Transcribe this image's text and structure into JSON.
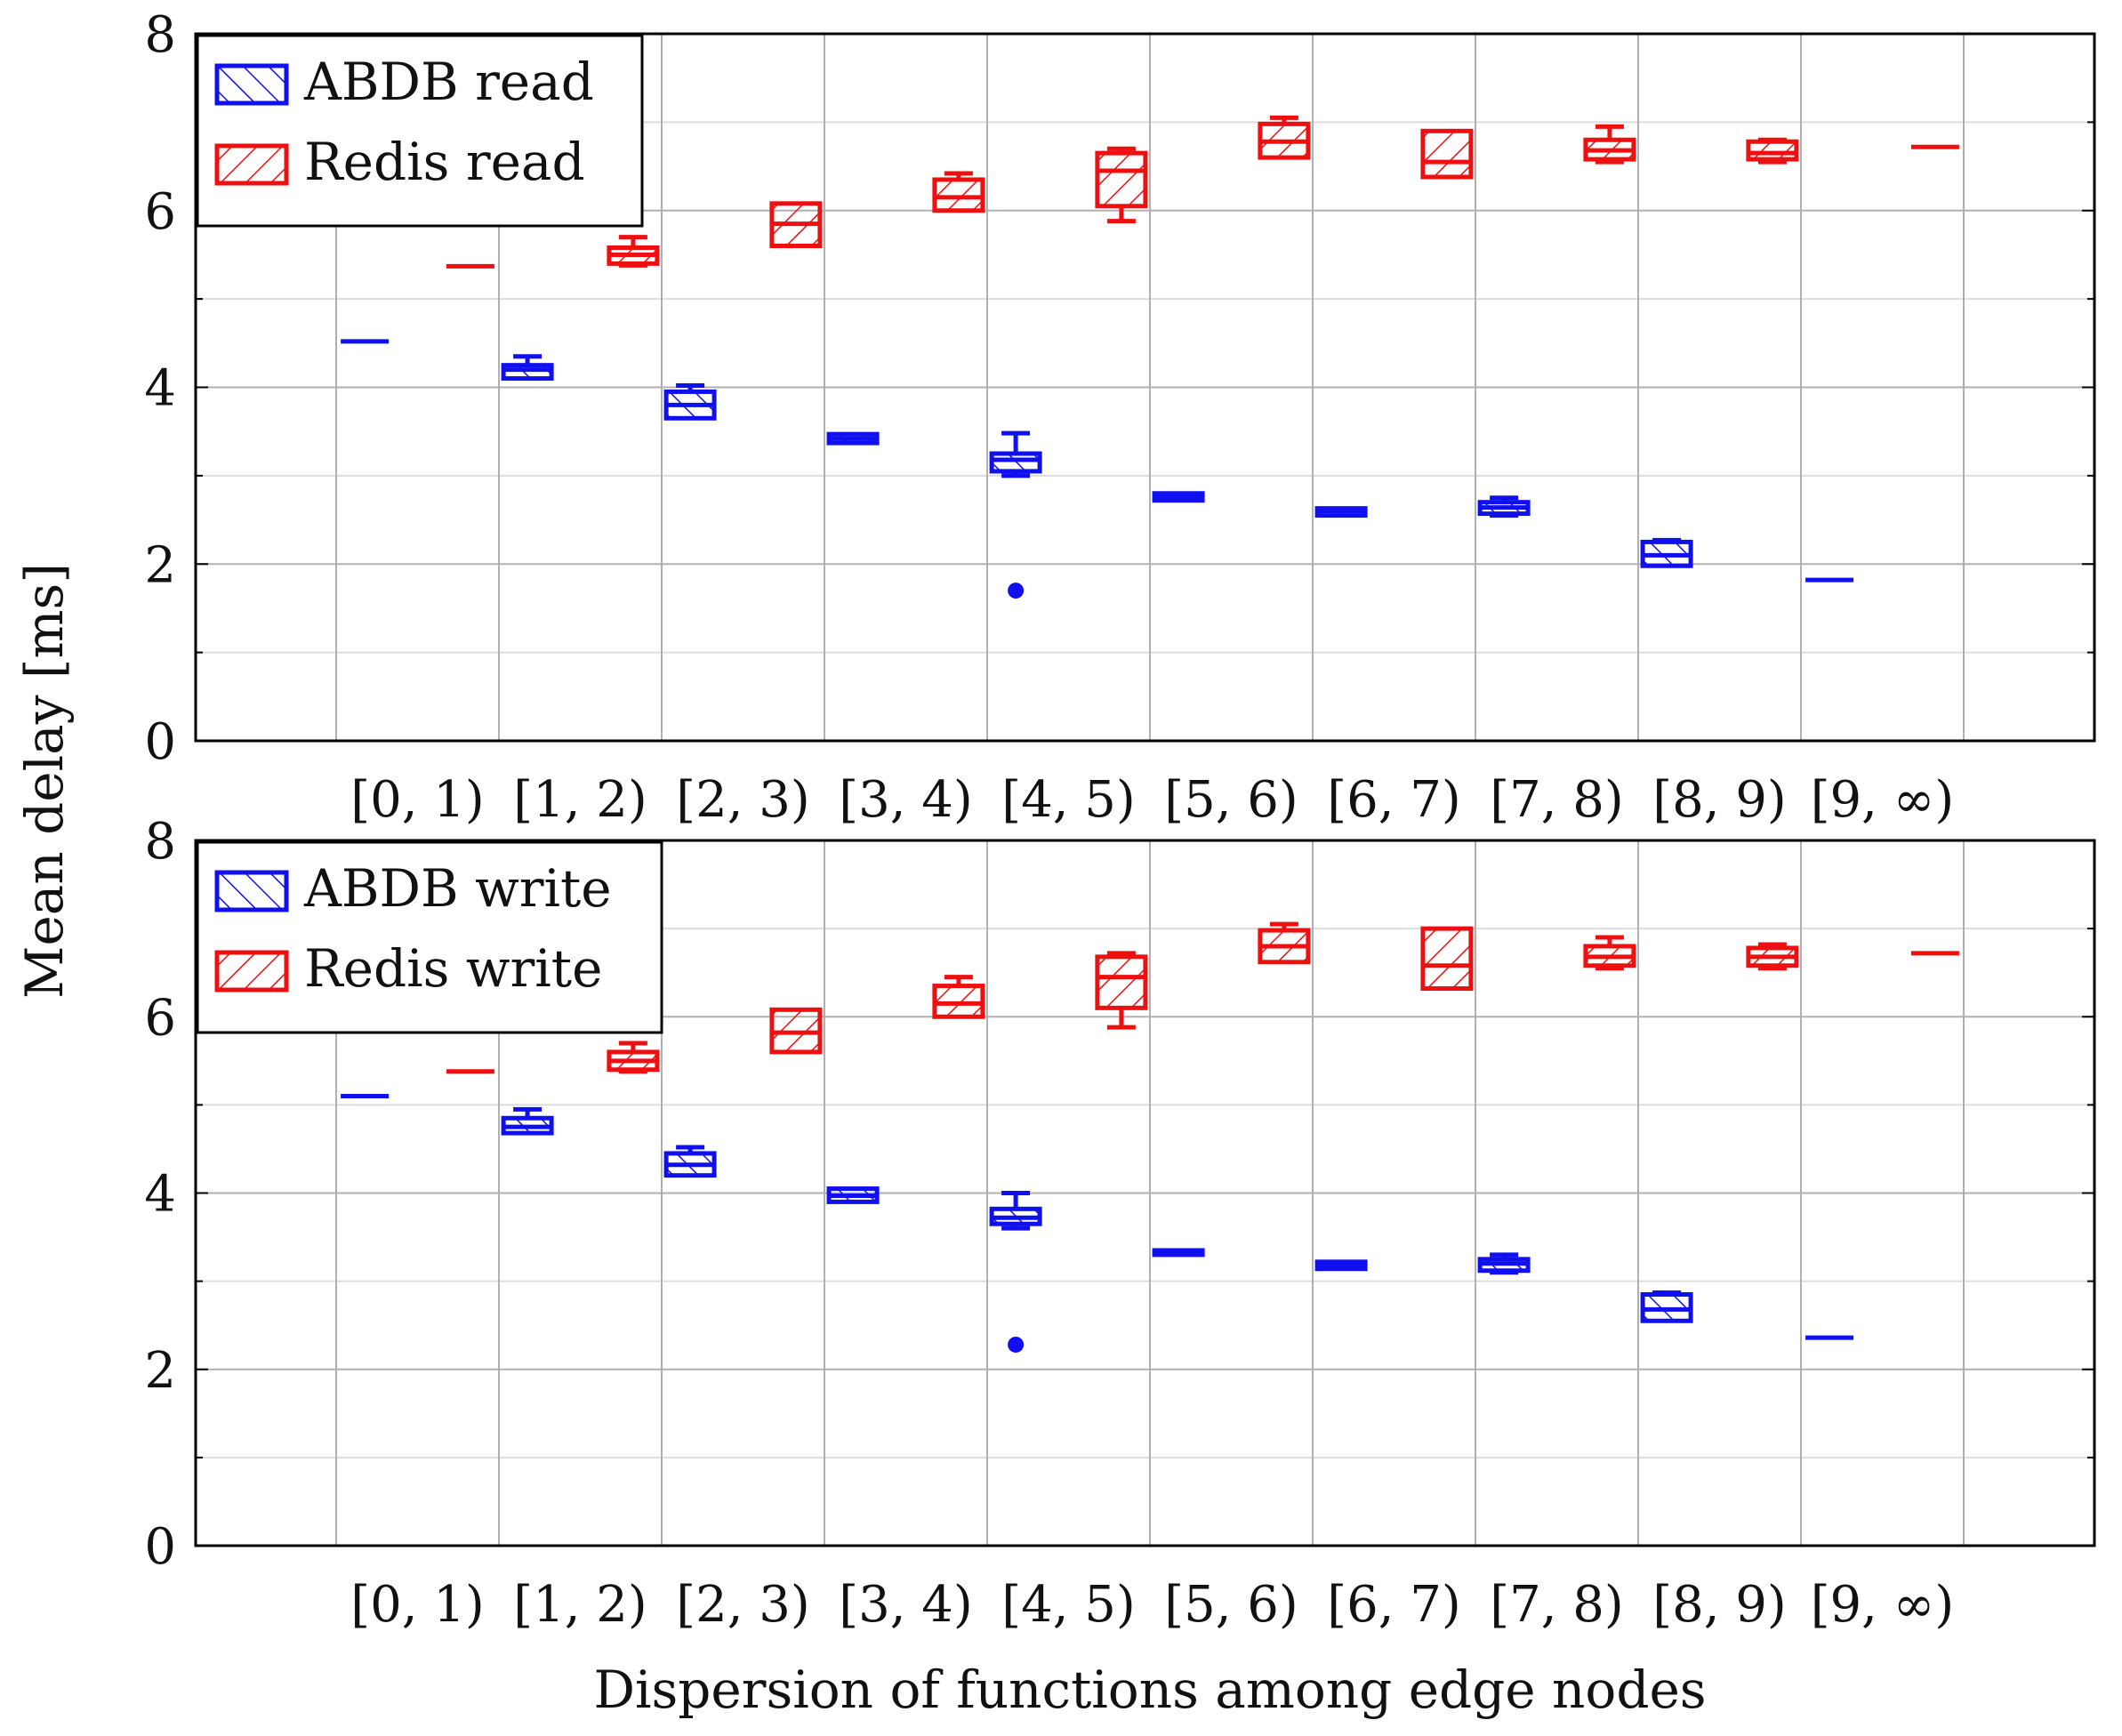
{
  "figure": {
    "ylabel": "Mean delay [ms]",
    "xlabel": "Dispersion of functions among edge nodes"
  },
  "colors": {
    "abdb": "#1010ee",
    "redis": "#ee1010",
    "grid_major": "#b0b0b0",
    "grid_minor": "#dcdcdc",
    "axis": "#000000"
  },
  "chart_data": [
    {
      "type": "box",
      "title": "",
      "xlabel": "",
      "ylabel": "Mean delay [ms]",
      "ylim": [
        0,
        8
      ],
      "yticks": [
        0,
        2,
        4,
        6,
        8
      ],
      "grid": true,
      "legend_position": "top-left",
      "categories": [
        "[0, 1)",
        "[1, 2)",
        "[2, 3)",
        "[3, 4)",
        "[4, 5)",
        "[5, 6)",
        "[6, 7)",
        "[7, 8)",
        "[8, 9)",
        "[9, ∞)"
      ],
      "series": [
        {
          "name": "ABDB read",
          "color": "#1010ee",
          "hatch": "north-east",
          "boxes": [
            {
              "min": 4.52,
              "q1": 4.52,
              "median": 4.52,
              "q3": 4.52,
              "max": 4.52
            },
            {
              "min": 4.1,
              "q1": 4.1,
              "median": 4.2,
              "q3": 4.25,
              "max": 4.35
            },
            {
              "min": 3.65,
              "q1": 3.65,
              "median": 3.8,
              "q3": 3.95,
              "max": 4.02
            },
            {
              "min": 3.37,
              "q1": 3.37,
              "median": 3.42,
              "q3": 3.47,
              "max": 3.47
            },
            {
              "min": 3.0,
              "q1": 3.05,
              "median": 3.18,
              "q3": 3.25,
              "max": 3.48,
              "outliers": [
                1.7
              ]
            },
            {
              "min": 2.72,
              "q1": 2.72,
              "median": 2.76,
              "q3": 2.8,
              "max": 2.8
            },
            {
              "min": 2.55,
              "q1": 2.55,
              "median": 2.6,
              "q3": 2.63,
              "max": 2.63
            },
            {
              "min": 2.55,
              "q1": 2.57,
              "median": 2.64,
              "q3": 2.7,
              "max": 2.75
            },
            {
              "min": 1.98,
              "q1": 1.98,
              "median": 2.1,
              "q3": 2.25,
              "max": 2.27
            },
            {
              "min": 1.82,
              "q1": 1.82,
              "median": 1.82,
              "q3": 1.82,
              "max": 1.82
            }
          ]
        },
        {
          "name": "Redis read",
          "color": "#ee1010",
          "hatch": "north-west",
          "boxes": [
            {
              "min": 5.37,
              "q1": 5.37,
              "median": 5.37,
              "q3": 5.37,
              "max": 5.37
            },
            {
              "min": 5.38,
              "q1": 5.4,
              "median": 5.5,
              "q3": 5.58,
              "max": 5.7
            },
            {
              "min": 5.6,
              "q1": 5.6,
              "median": 5.85,
              "q3": 6.08,
              "max": 6.08
            },
            {
              "min": 6.0,
              "q1": 6.0,
              "median": 6.15,
              "q3": 6.35,
              "max": 6.42
            },
            {
              "min": 5.88,
              "q1": 6.05,
              "median": 6.45,
              "q3": 6.65,
              "max": 6.7
            },
            {
              "min": 6.6,
              "q1": 6.6,
              "median": 6.78,
              "q3": 6.98,
              "max": 7.05
            },
            {
              "min": 6.38,
              "q1": 6.38,
              "median": 6.55,
              "q3": 6.9,
              "max": 6.9
            },
            {
              "min": 6.55,
              "q1": 6.58,
              "median": 6.68,
              "q3": 6.8,
              "max": 6.95
            },
            {
              "min": 6.55,
              "q1": 6.58,
              "median": 6.65,
              "q3": 6.78,
              "max": 6.8
            },
            {
              "min": 6.72,
              "q1": 6.72,
              "median": 6.72,
              "q3": 6.72,
              "max": 6.72
            }
          ]
        }
      ]
    },
    {
      "type": "box",
      "title": "",
      "xlabel": "Dispersion of functions among edge nodes",
      "ylabel": "Mean delay [ms]",
      "ylim": [
        0,
        8
      ],
      "yticks": [
        0,
        2,
        4,
        6,
        8
      ],
      "grid": true,
      "legend_position": "top-left",
      "categories": [
        "[0, 1)",
        "[1, 2)",
        "[2, 3)",
        "[3, 4)",
        "[4, 5)",
        "[5, 6)",
        "[6, 7)",
        "[7, 8)",
        "[8, 9)",
        "[9, ∞)"
      ],
      "series": [
        {
          "name": "ABDB write",
          "color": "#1010ee",
          "hatch": "north-east",
          "boxes": [
            {
              "min": 5.1,
              "q1": 5.1,
              "median": 5.1,
              "q3": 5.1,
              "max": 5.1
            },
            {
              "min": 4.68,
              "q1": 4.68,
              "median": 4.75,
              "q3": 4.85,
              "max": 4.95
            },
            {
              "min": 4.2,
              "q1": 4.2,
              "median": 4.32,
              "q3": 4.45,
              "max": 4.52
            },
            {
              "min": 3.9,
              "q1": 3.9,
              "median": 3.97,
              "q3": 4.05,
              "max": 4.05
            },
            {
              "min": 3.6,
              "q1": 3.65,
              "median": 3.72,
              "q3": 3.82,
              "max": 4.0,
              "outliers": [
                2.28
              ]
            },
            {
              "min": 3.3,
              "q1": 3.3,
              "median": 3.32,
              "q3": 3.35,
              "max": 3.35
            },
            {
              "min": 3.14,
              "q1": 3.14,
              "median": 3.18,
              "q3": 3.22,
              "max": 3.22
            },
            {
              "min": 3.1,
              "q1": 3.12,
              "median": 3.2,
              "q3": 3.25,
              "max": 3.3
            },
            {
              "min": 2.55,
              "q1": 2.55,
              "median": 2.68,
              "q3": 2.85,
              "max": 2.87
            },
            {
              "min": 2.36,
              "q1": 2.36,
              "median": 2.36,
              "q3": 2.36,
              "max": 2.36
            }
          ]
        },
        {
          "name": "Redis write",
          "color": "#ee1010",
          "hatch": "north-west",
          "boxes": [
            {
              "min": 5.38,
              "q1": 5.38,
              "median": 5.38,
              "q3": 5.38,
              "max": 5.38
            },
            {
              "min": 5.38,
              "q1": 5.4,
              "median": 5.5,
              "q3": 5.6,
              "max": 5.7
            },
            {
              "min": 5.6,
              "q1": 5.6,
              "median": 5.82,
              "q3": 6.08,
              "max": 6.08
            },
            {
              "min": 6.0,
              "q1": 6.0,
              "median": 6.15,
              "q3": 6.35,
              "max": 6.45
            },
            {
              "min": 5.88,
              "q1": 6.1,
              "median": 6.45,
              "q3": 6.68,
              "max": 6.72
            },
            {
              "min": 6.62,
              "q1": 6.62,
              "median": 6.8,
              "q3": 6.98,
              "max": 7.05
            },
            {
              "min": 6.32,
              "q1": 6.32,
              "median": 6.58,
              "q3": 7.0,
              "max": 7.0
            },
            {
              "min": 6.55,
              "q1": 6.58,
              "median": 6.68,
              "q3": 6.8,
              "max": 6.9
            },
            {
              "min": 6.55,
              "q1": 6.58,
              "median": 6.68,
              "q3": 6.78,
              "max": 6.82
            },
            {
              "min": 6.72,
              "q1": 6.72,
              "median": 6.72,
              "q3": 6.72,
              "max": 6.72
            }
          ]
        }
      ]
    }
  ]
}
